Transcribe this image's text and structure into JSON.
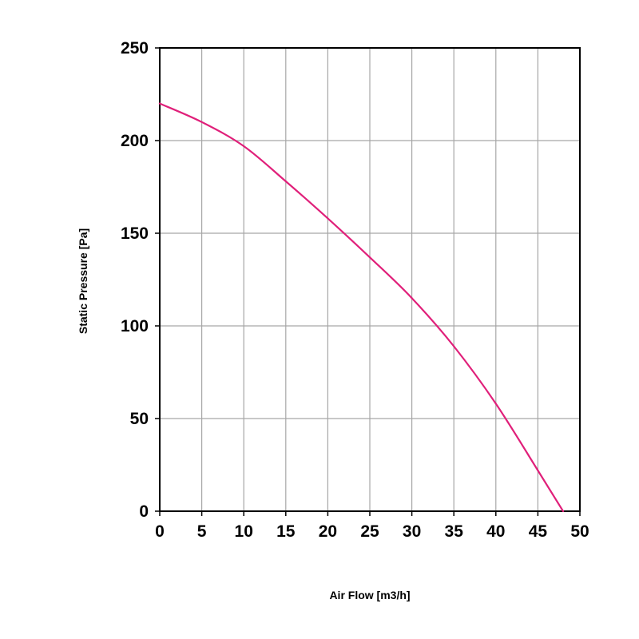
{
  "chart_data": {
    "type": "line",
    "title": "",
    "xlabel": "Air Flow [m3/h]",
    "ylabel": "Static Pressure [Pa]",
    "xlim": [
      0,
      50
    ],
    "ylim": [
      0,
      250
    ],
    "x_ticks": [
      "0",
      "5",
      "10",
      "15",
      "20",
      "25",
      "30",
      "35",
      "40",
      "45",
      "50"
    ],
    "y_ticks": [
      "0",
      "50",
      "100",
      "150",
      "200",
      "250"
    ],
    "grid": true,
    "legend": "none",
    "series": [
      {
        "color": "#e0207a",
        "x": [
          0,
          5,
          10,
          15,
          20,
          25,
          30,
          35,
          40,
          45,
          48
        ],
        "y": [
          220,
          210,
          197,
          178,
          158,
          137,
          115,
          89,
          58,
          22,
          0
        ]
      }
    ]
  }
}
